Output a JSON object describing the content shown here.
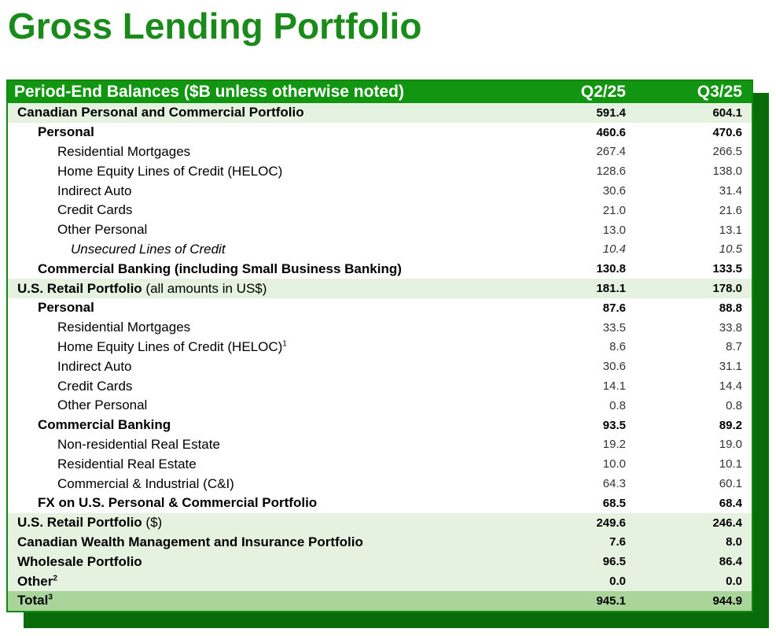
{
  "title": "Gross Lending Portfolio",
  "header": {
    "label": "Period-End Balances ($B unless otherwise noted)",
    "col1": "Q2/25",
    "col2": "Q3/25"
  },
  "rows": [
    {
      "label": "Canadian Personal and Commercial Portfolio",
      "note": "",
      "sup": "",
      "q2": "591.4",
      "q3": "604.1"
    },
    {
      "label": "Personal",
      "note": "",
      "sup": "",
      "q2": "460.6",
      "q3": "470.6"
    },
    {
      "label": "Residential Mortgages",
      "note": "",
      "sup": "",
      "q2": "267.4",
      "q3": "266.5"
    },
    {
      "label": "Home Equity Lines of Credit (HELOC)",
      "note": "",
      "sup": "",
      "q2": "128.6",
      "q3": "138.0"
    },
    {
      "label": "Indirect Auto",
      "note": "",
      "sup": "",
      "q2": "30.6",
      "q3": "31.4"
    },
    {
      "label": "Credit Cards",
      "note": "",
      "sup": "",
      "q2": "21.0",
      "q3": "21.6"
    },
    {
      "label": "Other Personal",
      "note": "",
      "sup": "",
      "q2": "13.0",
      "q3": "13.1"
    },
    {
      "label": "Unsecured Lines of Credit",
      "note": "",
      "sup": "",
      "q2": "10.4",
      "q3": "10.5"
    },
    {
      "label": "Commercial Banking (including Small Business Banking)",
      "note": "",
      "sup": "",
      "q2": "130.8",
      "q3": "133.5"
    },
    {
      "label": "U.S. Retail Portfolio",
      "note": " (all amounts in US$)",
      "sup": "",
      "q2": "181.1",
      "q3": "178.0"
    },
    {
      "label": "Personal",
      "note": "",
      "sup": "",
      "q2": "87.6",
      "q3": "88.8"
    },
    {
      "label": "Residential Mortgages",
      "note": "",
      "sup": "",
      "q2": "33.5",
      "q3": "33.8"
    },
    {
      "label": "Home Equity Lines of Credit (HELOC)",
      "note": "",
      "sup": "1",
      "q2": "8.6",
      "q3": "8.7"
    },
    {
      "label": "Indirect Auto",
      "note": "",
      "sup": "",
      "q2": "30.6",
      "q3": "31.1"
    },
    {
      "label": "Credit Cards",
      "note": "",
      "sup": "",
      "q2": "14.1",
      "q3": "14.4"
    },
    {
      "label": "Other Personal",
      "note": "",
      "sup": "",
      "q2": "0.8",
      "q3": "0.8"
    },
    {
      "label": "Commercial Banking",
      "note": "",
      "sup": "",
      "q2": "93.5",
      "q3": "89.2"
    },
    {
      "label": "Non-residential Real Estate",
      "note": "",
      "sup": "",
      "q2": "19.2",
      "q3": "19.0"
    },
    {
      "label": "Residential Real Estate",
      "note": "",
      "sup": "",
      "q2": "10.0",
      "q3": "10.1"
    },
    {
      "label": "Commercial & Industrial (C&I)",
      "note": "",
      "sup": "",
      "q2": "64.3",
      "q3": "60.1"
    },
    {
      "label": "FX on U.S. Personal & Commercial Portfolio",
      "note": "",
      "sup": "",
      "q2": "68.5",
      "q3": "68.4"
    },
    {
      "label": "U.S. Retail Portfolio",
      "note": " ($)",
      "sup": "",
      "q2": "249.6",
      "q3": "246.4"
    },
    {
      "label": "Canadian Wealth Management and Insurance Portfolio",
      "note": "",
      "sup": "",
      "q2": "7.6",
      "q3": "8.0"
    },
    {
      "label": "Wholesale Portfolio",
      "note": "",
      "sup": "",
      "q2": "96.5",
      "q3": "86.4"
    },
    {
      "label": "Other",
      "note": "",
      "sup": "2",
      "q2": "0.0",
      "q3": "0.0"
    },
    {
      "label": "Total",
      "note": "",
      "sup": "3",
      "q2": "945.1",
      "q3": "944.9"
    }
  ]
}
